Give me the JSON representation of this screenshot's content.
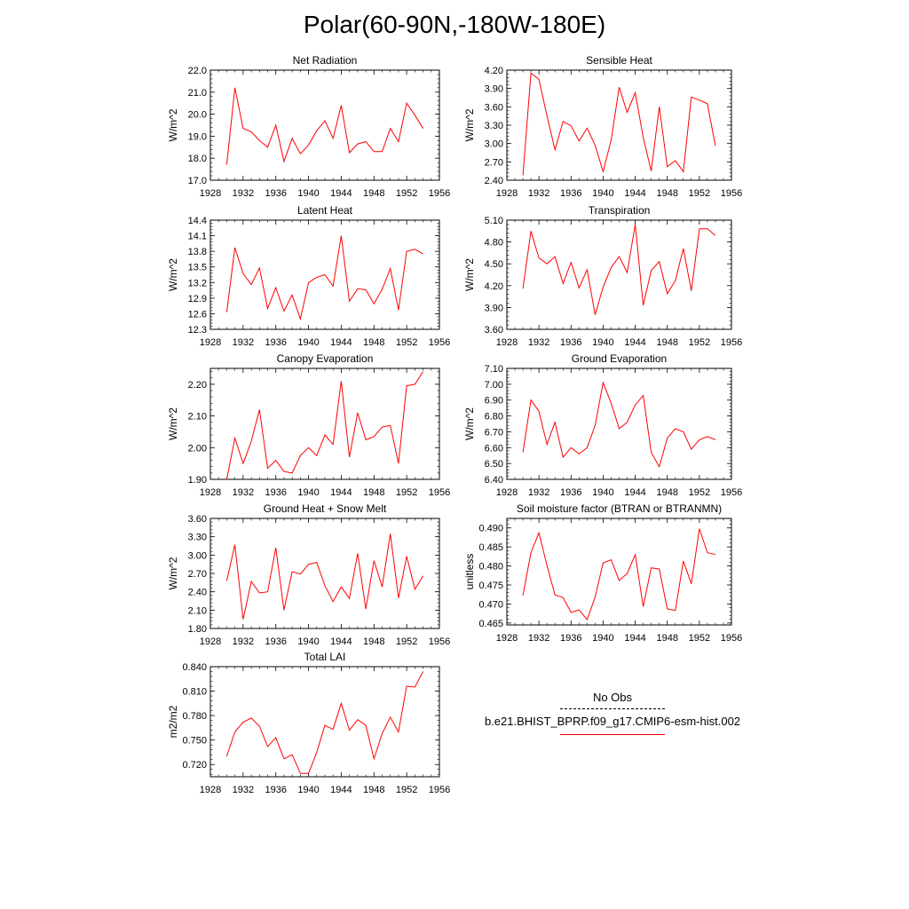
{
  "page_title": "Polar(60-90N,-180W-180E)",
  "legend": {
    "obs_label": "No Obs",
    "model_label": "b.e21.BHIST_BPRP.f09_g17.CMIP6-esm-hist.002",
    "model_color": "#ff0000",
    "obs_color": "#000000"
  },
  "chart_data": [
    {
      "type": "line",
      "title": "Net Radiation",
      "ylabel": "W/m^2",
      "xlim": [
        1928,
        1956
      ],
      "ylim": [
        17.0,
        22.0
      ],
      "xticks": [
        1928,
        1932,
        1936,
        1940,
        1944,
        1948,
        1952,
        1956
      ],
      "yticks": [
        "17.0",
        "18.0",
        "19.0",
        "20.0",
        "21.0",
        "22.0"
      ],
      "x": [
        1930,
        1931,
        1932,
        1933,
        1934,
        1935,
        1936,
        1937,
        1938,
        1939,
        1940,
        1941,
        1942,
        1943,
        1944,
        1945,
        1946,
        1947,
        1948,
        1949,
        1950,
        1951,
        1952,
        1953,
        1954
      ],
      "series": [
        {
          "name": "b.e21.BHIST_BPRP.f09_g17.CMIP6-esm-hist.002",
          "color": "#ff0000",
          "values": [
            17.7,
            21.2,
            19.35,
            19.2,
            18.8,
            18.5,
            19.5,
            17.85,
            18.9,
            18.2,
            18.6,
            19.25,
            19.7,
            18.9,
            20.4,
            18.25,
            18.65,
            18.75,
            18.3,
            18.3,
            19.35,
            18.75,
            20.5,
            19.95,
            19.35
          ]
        }
      ]
    },
    {
      "type": "line",
      "title": "Sensible Heat",
      "ylabel": "W/m^2",
      "xlim": [
        1928,
        1956
      ],
      "ylim": [
        2.4,
        4.2
      ],
      "xticks": [
        1928,
        1932,
        1936,
        1940,
        1944,
        1948,
        1952,
        1956
      ],
      "yticks": [
        "2.40",
        "2.70",
        "3.00",
        "3.30",
        "3.60",
        "3.90",
        "4.20"
      ],
      "x": [
        1930,
        1931,
        1932,
        1933,
        1934,
        1935,
        1936,
        1937,
        1938,
        1939,
        1940,
        1941,
        1942,
        1943,
        1944,
        1945,
        1946,
        1947,
        1948,
        1949,
        1950,
        1951,
        1952,
        1953,
        1954
      ],
      "series": [
        {
          "name": "b.e21.BHIST_BPRP.f09_g17.CMIP6-esm-hist.002",
          "color": "#ff0000",
          "values": [
            2.48,
            4.15,
            4.05,
            3.45,
            2.9,
            3.36,
            3.29,
            3.04,
            3.25,
            2.97,
            2.54,
            3.06,
            3.92,
            3.51,
            3.83,
            3.1,
            2.55,
            3.6,
            2.62,
            2.72,
            2.54,
            3.76,
            3.71,
            3.65,
            2.96
          ]
        }
      ]
    },
    {
      "type": "line",
      "title": "Latent Heat",
      "ylabel": "W/m^2",
      "xlim": [
        1928,
        1956
      ],
      "ylim": [
        12.3,
        14.4
      ],
      "xticks": [
        1928,
        1932,
        1936,
        1940,
        1944,
        1948,
        1952,
        1956
      ],
      "yticks": [
        "12.3",
        "12.6",
        "12.9",
        "13.2",
        "13.5",
        "13.8",
        "14.1",
        "14.4"
      ],
      "x": [
        1930,
        1931,
        1932,
        1933,
        1934,
        1935,
        1936,
        1937,
        1938,
        1939,
        1940,
        1941,
        1942,
        1943,
        1944,
        1945,
        1946,
        1947,
        1948,
        1949,
        1950,
        1951,
        1952,
        1953,
        1954
      ],
      "series": [
        {
          "name": "b.e21.BHIST_BPRP.f09_g17.CMIP6-esm-hist.002",
          "color": "#ff0000",
          "values": [
            12.63,
            13.87,
            13.37,
            13.16,
            13.48,
            12.7,
            13.1,
            12.65,
            12.96,
            12.5,
            13.2,
            13.3,
            13.35,
            13.13,
            14.1,
            12.84,
            13.08,
            13.06,
            12.79,
            13.07,
            13.47,
            12.67,
            13.8,
            13.84,
            13.75
          ]
        }
      ]
    },
    {
      "type": "line",
      "title": "Transpiration",
      "ylabel": "W/m^2",
      "xlim": [
        1928,
        1956
      ],
      "ylim": [
        3.6,
        5.1
      ],
      "xticks": [
        1928,
        1932,
        1936,
        1940,
        1944,
        1948,
        1952,
        1956
      ],
      "yticks": [
        "3.60",
        "3.90",
        "4.20",
        "4.50",
        "4.80",
        "5.10"
      ],
      "x": [
        1930,
        1931,
        1932,
        1933,
        1934,
        1935,
        1936,
        1937,
        1938,
        1939,
        1940,
        1941,
        1942,
        1943,
        1944,
        1945,
        1946,
        1947,
        1948,
        1949,
        1950,
        1951,
        1952,
        1953,
        1954
      ],
      "series": [
        {
          "name": "b.e21.BHIST_BPRP.f09_g17.CMIP6-esm-hist.002",
          "color": "#ff0000",
          "values": [
            4.16,
            4.95,
            4.58,
            4.5,
            4.6,
            4.23,
            4.52,
            4.17,
            4.42,
            3.8,
            4.18,
            4.45,
            4.6,
            4.38,
            5.04,
            3.93,
            4.41,
            4.53,
            4.09,
            4.27,
            4.71,
            4.13,
            4.98,
            4.98,
            4.89
          ]
        }
      ]
    },
    {
      "type": "line",
      "title": "Canopy Evaporation",
      "ylabel": "W/m^2",
      "xlim": [
        1928,
        1956
      ],
      "ylim": [
        1.9,
        2.25
      ],
      "xticks": [
        1928,
        1932,
        1936,
        1940,
        1944,
        1948,
        1952,
        1956
      ],
      "yticks": [
        "1.90",
        "2.00",
        "2.10",
        "2.20"
      ],
      "x": [
        1930,
        1931,
        1932,
        1933,
        1934,
        1935,
        1936,
        1937,
        1938,
        1939,
        1940,
        1941,
        1942,
        1943,
        1944,
        1945,
        1946,
        1947,
        1948,
        1949,
        1950,
        1951,
        1952,
        1953,
        1954
      ],
      "series": [
        {
          "name": "b.e21.BHIST_BPRP.f09_g17.CMIP6-esm-hist.002",
          "color": "#ff0000",
          "values": [
            1.9,
            2.03,
            1.95,
            2.02,
            2.12,
            1.935,
            1.96,
            1.925,
            1.92,
            1.975,
            2.0,
            1.975,
            2.04,
            2.01,
            2.21,
            1.97,
            2.11,
            2.025,
            2.035,
            2.065,
            2.07,
            1.95,
            2.195,
            2.2,
            2.24
          ]
        }
      ]
    },
    {
      "type": "line",
      "title": "Ground Evaporation",
      "ylabel": "W/m^2",
      "xlim": [
        1928,
        1956
      ],
      "ylim": [
        6.4,
        7.1
      ],
      "xticks": [
        1928,
        1932,
        1936,
        1940,
        1944,
        1948,
        1952,
        1956
      ],
      "yticks": [
        "6.40",
        "6.50",
        "6.60",
        "6.70",
        "6.80",
        "6.90",
        "7.00",
        "7.10"
      ],
      "x": [
        1930,
        1931,
        1932,
        1933,
        1934,
        1935,
        1936,
        1937,
        1938,
        1939,
        1940,
        1941,
        1942,
        1943,
        1944,
        1945,
        1946,
        1947,
        1948,
        1949,
        1950,
        1951,
        1952,
        1953,
        1954
      ],
      "series": [
        {
          "name": "b.e21.BHIST_BPRP.f09_g17.CMIP6-esm-hist.002",
          "color": "#ff0000",
          "values": [
            6.57,
            6.9,
            6.83,
            6.62,
            6.76,
            6.54,
            6.6,
            6.56,
            6.6,
            6.74,
            7.01,
            6.88,
            6.72,
            6.76,
            6.87,
            6.93,
            6.57,
            6.48,
            6.66,
            6.72,
            6.7,
            6.59,
            6.65,
            6.67,
            6.65
          ]
        }
      ]
    },
    {
      "type": "line",
      "title": "Ground Heat + Snow Melt",
      "ylabel": "W/m^2",
      "xlim": [
        1928,
        1956
      ],
      "ylim": [
        1.8,
        3.6
      ],
      "xticks": [
        1928,
        1932,
        1936,
        1940,
        1944,
        1948,
        1952,
        1956
      ],
      "yticks": [
        "1.80",
        "2.10",
        "2.40",
        "2.70",
        "3.00",
        "3.30",
        "3.60"
      ],
      "x": [
        1930,
        1931,
        1932,
        1933,
        1934,
        1935,
        1936,
        1937,
        1938,
        1939,
        1940,
        1941,
        1942,
        1943,
        1944,
        1945,
        1946,
        1947,
        1948,
        1949,
        1950,
        1951,
        1952,
        1953,
        1954
      ],
      "series": [
        {
          "name": "b.e21.BHIST_BPRP.f09_g17.CMIP6-esm-hist.002",
          "color": "#ff0000",
          "values": [
            2.58,
            3.17,
            1.95,
            2.57,
            2.38,
            2.4,
            3.12,
            2.1,
            2.73,
            2.69,
            2.85,
            2.88,
            2.5,
            2.24,
            2.48,
            2.29,
            3.03,
            2.12,
            2.91,
            2.48,
            3.35,
            2.3,
            2.98,
            2.44,
            2.66
          ]
        }
      ]
    },
    {
      "type": "line",
      "title": "Soil moisture factor (BTRAN or BTRANMN)",
      "ylabel": "unitless",
      "xlim": [
        1928,
        1956
      ],
      "ylim": [
        0.4645,
        0.4925
      ],
      "xticks": [
        1928,
        1932,
        1936,
        1940,
        1944,
        1948,
        1952,
        1956
      ],
      "yticks": [
        "0.465",
        "0.470",
        "0.475",
        "0.480",
        "0.485",
        "0.490"
      ],
      "x": [
        1930,
        1931,
        1932,
        1933,
        1934,
        1935,
        1936,
        1937,
        1938,
        1939,
        1940,
        1941,
        1942,
        1943,
        1944,
        1945,
        1946,
        1947,
        1948,
        1949,
        1950,
        1951,
        1952,
        1953,
        1954
      ],
      "series": [
        {
          "name": "b.e21.BHIST_BPRP.f09_g17.CMIP6-esm-hist.002",
          "color": "#ff0000",
          "values": [
            0.4723,
            0.4835,
            0.4887,
            0.4801,
            0.4724,
            0.4717,
            0.4678,
            0.4685,
            0.4659,
            0.4718,
            0.4808,
            0.4816,
            0.4762,
            0.478,
            0.483,
            0.4693,
            0.4795,
            0.4792,
            0.4687,
            0.4683,
            0.4813,
            0.4753,
            0.4898,
            0.4835,
            0.483
          ]
        }
      ]
    },
    {
      "type": "line",
      "title": "Total LAI",
      "ylabel": "m2/m2",
      "xlim": [
        1928,
        1956
      ],
      "ylim": [
        0.705,
        0.84
      ],
      "xticks": [
        1928,
        1932,
        1936,
        1940,
        1944,
        1948,
        1952,
        1956
      ],
      "yticks": [
        "0.720",
        "0.750",
        "0.780",
        "0.810",
        "0.840"
      ],
      "x": [
        1930,
        1931,
        1932,
        1933,
        1934,
        1935,
        1936,
        1937,
        1938,
        1939,
        1940,
        1941,
        1942,
        1943,
        1944,
        1945,
        1946,
        1947,
        1948,
        1949,
        1950,
        1951,
        1952,
        1953,
        1954
      ],
      "series": [
        {
          "name": "b.e21.BHIST_BPRP.f09_g17.CMIP6-esm-hist.002",
          "color": "#ff0000",
          "values": [
            0.73,
            0.76,
            0.772,
            0.777,
            0.767,
            0.742,
            0.753,
            0.727,
            0.732,
            0.709,
            0.709,
            0.735,
            0.768,
            0.763,
            0.795,
            0.762,
            0.775,
            0.768,
            0.727,
            0.758,
            0.778,
            0.76,
            0.816,
            0.815,
            0.834
          ]
        }
      ]
    }
  ]
}
